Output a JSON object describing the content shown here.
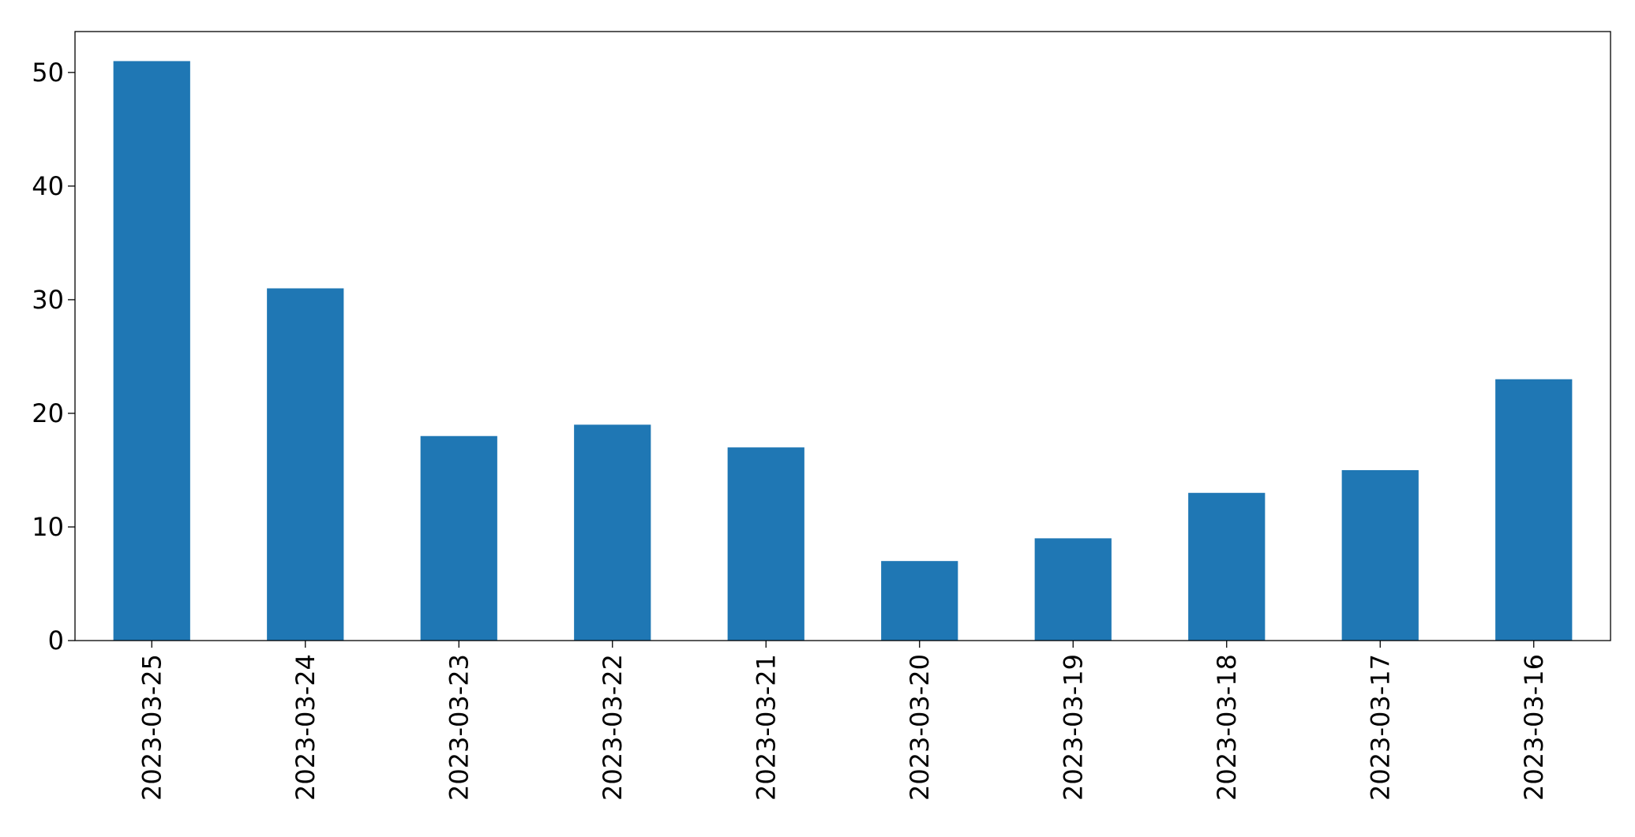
{
  "chart_data": {
    "type": "bar",
    "categories": [
      "2023-03-25",
      "2023-03-24",
      "2023-03-23",
      "2023-03-22",
      "2023-03-21",
      "2023-03-20",
      "2023-03-19",
      "2023-03-18",
      "2023-03-17",
      "2023-03-16"
    ],
    "series": [
      {
        "values": [
          51,
          31,
          18,
          19,
          17,
          7,
          9,
          13,
          15,
          23
        ]
      }
    ],
    "title": "",
    "xlabel": "",
    "ylabel": "",
    "ylim": [
      0,
      53.6
    ],
    "yticks": [
      0,
      10,
      20,
      30,
      40,
      50
    ],
    "grid": false,
    "bar_color": "#1f77b4",
    "xtick_rotation": "vertical"
  }
}
